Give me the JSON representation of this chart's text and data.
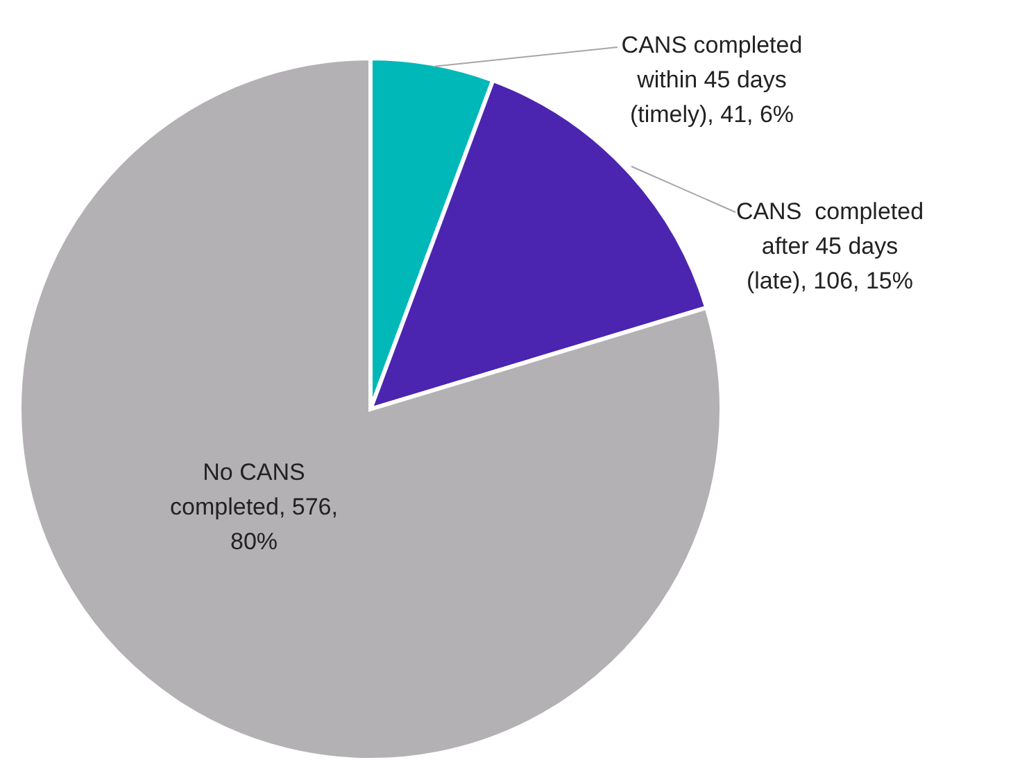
{
  "chart_data": {
    "type": "pie",
    "categories": [
      "CANS completed within 45 days (timely)",
      "CANS  completed after 45 days (late)",
      "No CANS completed"
    ],
    "values": [
      41,
      106,
      576
    ],
    "colors": [
      "#00b8b8",
      "#4b25b0",
      "#b3b1b3"
    ],
    "value_labels": [
      "41, 6%",
      "106, 15%",
      "576, 80%"
    ],
    "legend": false
  }
}
